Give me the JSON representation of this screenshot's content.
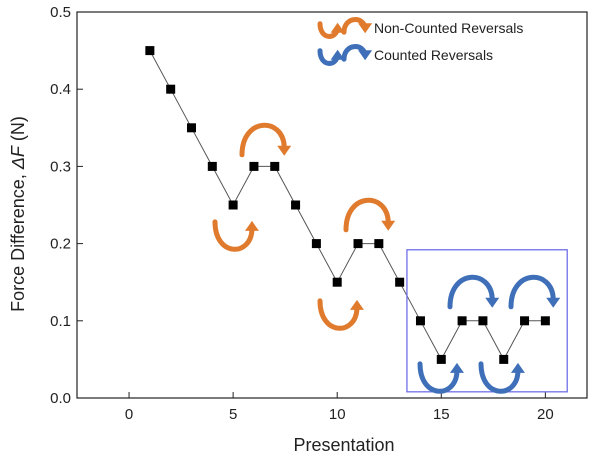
{
  "chart_data": {
    "type": "line",
    "title": "",
    "xlabel": "Presentation",
    "ylabel_prefix": "Force Difference, ",
    "ylabel_symbol": "ΔF",
    "ylabel_suffix": " (N)",
    "xlim": [
      -2.5,
      22
    ],
    "ylim": [
      0,
      0.5
    ],
    "xticks": [
      0,
      5,
      10,
      15,
      20
    ],
    "yticks": [
      0.0,
      0.1,
      0.2,
      0.3,
      0.4,
      0.5
    ],
    "ytick_labels": [
      "0.0",
      "0.1",
      "0.2",
      "0.3",
      "0.4",
      "0.5"
    ],
    "grid": false,
    "legend_position": "top-right",
    "series": [
      {
        "x": [
          1,
          2,
          3,
          4,
          5,
          6,
          7,
          8,
          9,
          10,
          11,
          12,
          13,
          14,
          15,
          16,
          17,
          18,
          19,
          20
        ],
        "values": [
          0.45,
          0.4,
          0.35,
          0.3,
          0.25,
          0.3,
          0.3,
          0.25,
          0.2,
          0.15,
          0.2,
          0.2,
          0.15,
          0.1,
          0.05,
          0.1,
          0.1,
          0.05,
          0.1,
          0.1
        ]
      }
    ],
    "legend": [
      {
        "label": "Non-Counted Reversals",
        "color": "#E07B2E"
      },
      {
        "label": "Counted Reversals",
        "color": "#3E6FB8"
      }
    ],
    "colors": {
      "line": "#555555",
      "marker": "#000000",
      "non_counted": "#E07B2E",
      "counted": "#3E6FB8",
      "highlight_box": "#6F6FE8"
    }
  }
}
